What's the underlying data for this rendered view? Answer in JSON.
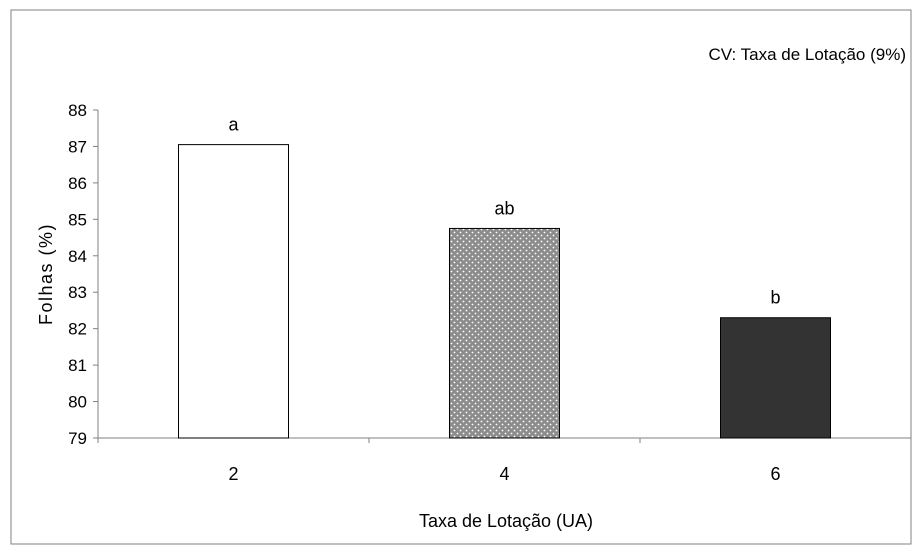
{
  "chart_data": {
    "type": "bar",
    "annotation": "CV: Taxa de Lotação (9%)",
    "xlabel": "Taxa de Lotação (UA)",
    "ylabel": "Folhas (%)",
    "ylim": [
      79,
      88
    ],
    "yticks": [
      "79",
      "80",
      "81",
      "82",
      "83",
      "84",
      "85",
      "86",
      "87",
      "88"
    ],
    "categories": [
      "2",
      "4",
      "6"
    ],
    "values": [
      87.05,
      84.75,
      82.3
    ],
    "letters": [
      "a",
      "ab",
      "b"
    ],
    "bar_styles": [
      "white",
      "dotted-gray",
      "dark"
    ],
    "colors": {
      "white": "#ffffff",
      "dotted_gray": "#8c8c8c",
      "dark": "#333333",
      "axis": "#808080",
      "frame": "#808080"
    },
    "grid": false,
    "legend": "none"
  }
}
